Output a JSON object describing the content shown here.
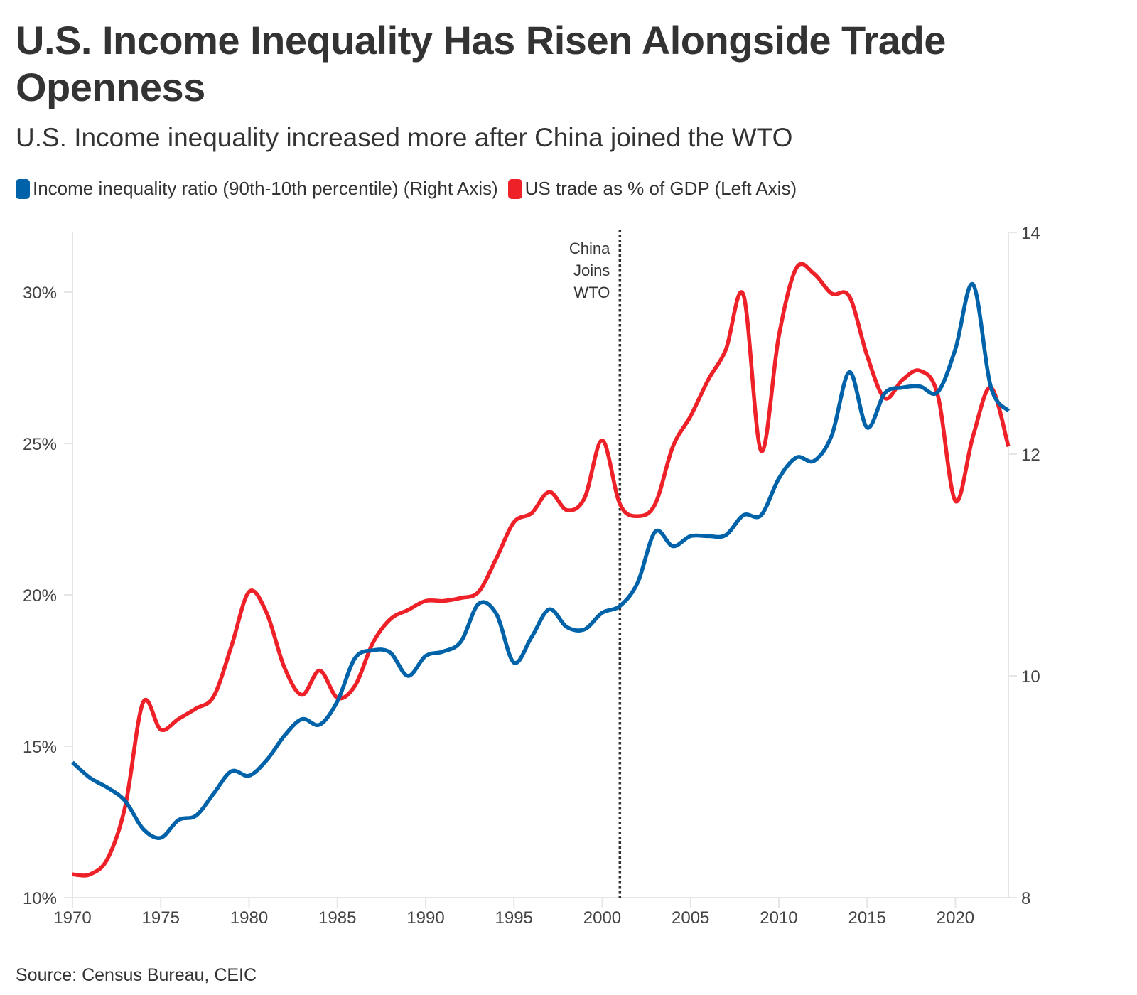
{
  "title": "U.S. Income Inequality Has Risen Alongside Trade Openness",
  "subtitle": "U.S. Income inequality increased more after China joined the WTO",
  "legend": [
    {
      "label": "Income inequality ratio (90th-10th percentile) (Right Axis)",
      "color": "#0063a9"
    },
    {
      "label": "US trade as % of GDP (Left Axis)",
      "color": "#ee2028"
    }
  ],
  "source": "Source: Census Bureau, CEIC",
  "chart_data": {
    "type": "line",
    "title": "U.S. Income Inequality Has Risen Alongside Trade Openness",
    "subtitle": "U.S. Income inequality increased more after China joined the WTO",
    "xlabel": "",
    "ylabel_left": "",
    "ylabel_right": "",
    "x_range": [
      1970,
      2023
    ],
    "x_ticks": [
      1970,
      1975,
      1980,
      1985,
      1990,
      1995,
      2000,
      2005,
      2010,
      2015,
      2020
    ],
    "x_tick_labels": [
      "1970",
      "1975",
      "1980",
      "1985",
      "1990",
      "1995",
      "2000",
      "2005",
      "2010",
      "2015",
      "2020"
    ],
    "ylim_left": [
      10,
      32
    ],
    "y_ticks_left": [
      10,
      15,
      20,
      25,
      30
    ],
    "y_tick_labels_left": [
      "10%",
      "15%",
      "20%",
      "25%",
      "30%"
    ],
    "ylim_right": [
      8,
      14
    ],
    "y_ticks_right": [
      8,
      10,
      12,
      14
    ],
    "y_tick_labels_right": [
      "8",
      "10",
      "12",
      "14"
    ],
    "grid": false,
    "legend_position": "top-left",
    "annotations": [
      {
        "x": 2001,
        "lines": [
          "China",
          "Joins",
          "WTO"
        ],
        "style": "dotted-vertical-line"
      }
    ],
    "x": [
      1970,
      1971,
      1972,
      1973,
      1974,
      1975,
      1976,
      1977,
      1978,
      1979,
      1980,
      1981,
      1982,
      1983,
      1984,
      1985,
      1986,
      1987,
      1988,
      1989,
      1990,
      1991,
      1992,
      1993,
      1994,
      1995,
      1996,
      1997,
      1998,
      1999,
      2000,
      2001,
      2002,
      2003,
      2004,
      2005,
      2006,
      2007,
      2008,
      2009,
      2010,
      2011,
      2012,
      2013,
      2014,
      2015,
      2016,
      2017,
      2018,
      2019,
      2020,
      2021,
      2022,
      2023
    ],
    "series": [
      {
        "name": "Income inequality ratio (90th-10th percentile) (Right Axis)",
        "axis": "right",
        "color": "#0063a9",
        "values": [
          9.22,
          9.08,
          8.99,
          8.87,
          8.62,
          8.54,
          8.7,
          8.74,
          8.94,
          9.14,
          9.1,
          9.24,
          9.46,
          9.61,
          9.56,
          9.77,
          10.16,
          10.23,
          10.21,
          10.0,
          10.18,
          10.22,
          10.31,
          10.65,
          10.56,
          10.12,
          10.35,
          10.6,
          10.44,
          10.42,
          10.57,
          10.63,
          10.84,
          11.3,
          11.17,
          11.26,
          11.26,
          11.27,
          11.45,
          11.45,
          11.78,
          11.97,
          11.94,
          12.17,
          12.74,
          12.24,
          12.55,
          12.6,
          12.61,
          12.56,
          12.95,
          13.53,
          12.61,
          12.39
        ]
      },
      {
        "name": "US trade as % of GDP (Left Axis)",
        "axis": "left",
        "color": "#ee2028",
        "values": [
          10.77,
          10.77,
          11.3,
          13.05,
          16.45,
          15.55,
          15.9,
          16.25,
          16.65,
          18.3,
          20.1,
          19.4,
          17.6,
          16.7,
          17.5,
          16.6,
          17.0,
          18.4,
          19.2,
          19.5,
          19.8,
          19.8,
          19.9,
          20.1,
          21.2,
          22.4,
          22.7,
          23.4,
          22.8,
          23.2,
          25.1,
          23.0,
          22.6,
          23.0,
          24.9,
          25.9,
          27.1,
          28.1,
          29.9,
          24.75,
          28.55,
          30.8,
          30.6,
          29.95,
          29.85,
          27.9,
          26.5,
          27.1,
          27.4,
          26.6,
          23.1,
          25.25,
          26.85,
          24.9
        ]
      }
    ]
  }
}
